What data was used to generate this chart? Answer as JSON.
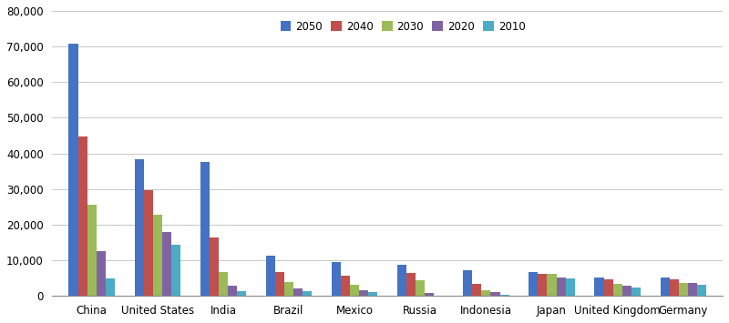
{
  "categories": [
    "China",
    "United States",
    "India",
    "Brazil",
    "Mexico",
    "Russia",
    "Indonesia",
    "Japan",
    "United Kingdom",
    "Germany"
  ],
  "series": {
    "2050": [
      70800,
      38500,
      37500,
      11200,
      9500,
      8700,
      7200,
      6800,
      5200,
      5300
    ],
    "2040": [
      44800,
      29800,
      16500,
      6700,
      5600,
      6500,
      3300,
      6200,
      4600,
      4700
    ],
    "2030": [
      25500,
      22700,
      6800,
      3800,
      3100,
      4400,
      1700,
      6200,
      3500,
      3700
    ],
    "2020": [
      12500,
      18000,
      3000,
      2200,
      1700,
      800,
      1100,
      5200,
      2900,
      3700
    ],
    "2010": [
      5000,
      14500,
      1300,
      1400,
      1100,
      200,
      300,
      5000,
      2500,
      3100
    ]
  },
  "colors": {
    "2050": "#4472C4",
    "2040": "#C0504D",
    "2030": "#9BBB59",
    "2020": "#8064A2",
    "2010": "#4BACC6"
  },
  "ylim": [
    0,
    80000
  ],
  "yticks": [
    0,
    10000,
    20000,
    30000,
    40000,
    50000,
    60000,
    70000,
    80000
  ],
  "background_color": "#FFFFFF",
  "legend_labels": [
    "2050",
    "2040",
    "2030",
    "2020",
    "2010"
  ],
  "bar_width": 0.14,
  "figsize": [
    8.0,
    3.55
  ],
  "dpi": 100
}
